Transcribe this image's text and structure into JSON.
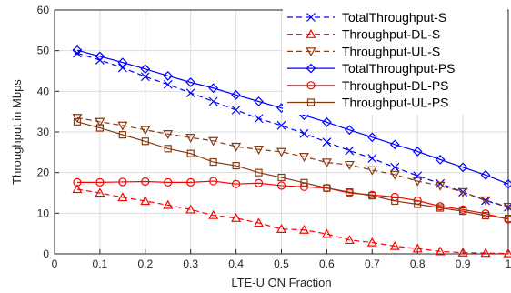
{
  "chart_data": {
    "type": "line",
    "title": "",
    "xlabel": "LTE-U ON Fraction",
    "ylabel": "Throughput in Mbps",
    "xlim": [
      0,
      1
    ],
    "ylim": [
      0,
      60
    ],
    "xticks": [
      "0",
      "0.1",
      "0.2",
      "0.3",
      "0.4",
      "0.5",
      "0.6",
      "0.7",
      "0.8",
      "0.9",
      "1"
    ],
    "yticks": [
      "0",
      "10",
      "20",
      "30",
      "40",
      "50",
      "60"
    ],
    "grid": true,
    "legend_position": "top-right",
    "x": [
      0.05,
      0.1,
      0.15,
      0.2,
      0.25,
      0.3,
      0.35,
      0.4,
      0.45,
      0.5,
      0.55,
      0.6,
      0.65,
      0.7,
      0.75,
      0.8,
      0.85,
      0.9,
      0.95,
      1.0
    ],
    "series": [
      {
        "name": "TotalThroughput-S",
        "color": "#0000ff",
        "marker": "x",
        "dash": true,
        "values": [
          49.4,
          47.7,
          45.8,
          43.6,
          41.7,
          39.6,
          37.5,
          35.4,
          33.3,
          31.6,
          29.6,
          27.5,
          25.4,
          23.5,
          21.3,
          19.2,
          17.3,
          15.2,
          13.1,
          11.5
        ]
      },
      {
        "name": "Throughput-DL-S",
        "color": "#ff0000",
        "marker": "triangle-up",
        "dash": true,
        "values": [
          15.9,
          15.0,
          13.9,
          13.0,
          12.0,
          10.9,
          9.5,
          8.8,
          7.6,
          6.1,
          5.9,
          4.9,
          3.4,
          2.8,
          1.9,
          1.3,
          0.6,
          0.3,
          0.2,
          0.1
        ]
      },
      {
        "name": "Throughput-UL-S",
        "color": "#8b3a0f",
        "marker": "triangle-down",
        "dash": true,
        "values": [
          33.5,
          32.5,
          31.6,
          30.5,
          29.5,
          28.6,
          27.8,
          26.4,
          25.7,
          25.1,
          23.9,
          22.5,
          21.9,
          20.6,
          19.5,
          17.9,
          16.8,
          15.2,
          13.2,
          11.6
        ]
      },
      {
        "name": "TotalThroughput-PS",
        "color": "#0000ff",
        "marker": "diamond",
        "dash": false,
        "values": [
          50.1,
          48.6,
          47.1,
          45.5,
          43.8,
          42.2,
          40.8,
          39.1,
          37.5,
          35.9,
          34.1,
          32.4,
          30.5,
          28.7,
          26.9,
          25.2,
          23.2,
          21.3,
          19.4,
          17.2
        ]
      },
      {
        "name": "Throughput-DL-PS",
        "color": "#ff0000",
        "marker": "circle",
        "dash": false,
        "values": [
          17.6,
          17.6,
          17.7,
          17.8,
          17.6,
          17.6,
          17.9,
          17.2,
          17.4,
          16.8,
          16.5,
          16.2,
          15.0,
          14.5,
          14.0,
          13.1,
          11.7,
          10.9,
          9.9,
          8.5
        ]
      },
      {
        "name": "Throughput-UL-PS",
        "color": "#8b3a0f",
        "marker": "square",
        "dash": false,
        "values": [
          32.5,
          31.0,
          29.3,
          27.7,
          25.9,
          24.7,
          22.6,
          21.7,
          20.0,
          18.8,
          17.5,
          16.2,
          15.2,
          14.3,
          13.0,
          12.2,
          11.3,
          10.5,
          9.4,
          8.7
        ]
      }
    ]
  }
}
